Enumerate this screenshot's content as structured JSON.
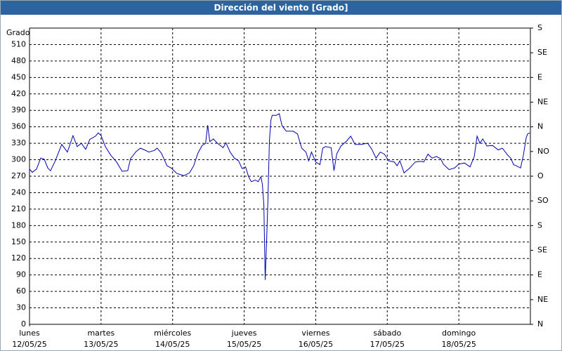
{
  "chart_data": {
    "type": "line",
    "title": "Dirección del viento [Grado]",
    "y_label": "Grado",
    "ylim": [
      0,
      540
    ],
    "yticks": [
      0,
      30,
      60,
      90,
      120,
      150,
      180,
      210,
      240,
      270,
      300,
      330,
      360,
      390,
      420,
      450,
      480,
      510
    ],
    "y2lim": [
      0,
      540
    ],
    "y2ticks": [
      {
        "value": 540,
        "label": "S"
      },
      {
        "value": 495,
        "label": "SE"
      },
      {
        "value": 450,
        "label": "E"
      },
      {
        "value": 405,
        "label": "NE"
      },
      {
        "value": 360,
        "label": "N"
      },
      {
        "value": 315,
        "label": "NO"
      },
      {
        "value": 270,
        "label": "O"
      },
      {
        "value": 225,
        "label": "SO"
      },
      {
        "value": 180,
        "label": "S"
      },
      {
        "value": 135,
        "label": "SE"
      },
      {
        "value": 90,
        "label": "E"
      },
      {
        "value": 45,
        "label": "NE"
      },
      {
        "value": 0,
        "label": "N"
      }
    ],
    "xlim": [
      0,
      7
    ],
    "xticks": [
      {
        "value": 0,
        "label": "lunes",
        "date": "12/05/25"
      },
      {
        "value": 1,
        "label": "martes",
        "date": "13/05/25"
      },
      {
        "value": 2,
        "label": "miércoles",
        "date": "14/05/25"
      },
      {
        "value": 3,
        "label": "jueves",
        "date": "15/05/25"
      },
      {
        "value": 4,
        "label": "viernes",
        "date": "16/05/25"
      },
      {
        "value": 5,
        "label": "sábado",
        "date": "17/05/25"
      },
      {
        "value": 6,
        "label": "domingo",
        "date": "18/05/25"
      }
    ],
    "grid": true,
    "x": [
      0,
      0.039,
      0.098,
      0.157,
      0.206,
      0.255,
      0.294,
      0.353,
      0.451,
      0.529,
      0.608,
      0.667,
      0.725,
      0.784,
      0.843,
      0.922,
      0.961,
      1.0,
      1.059,
      1.137,
      1.216,
      1.294,
      1.373,
      1.412,
      1.49,
      1.549,
      1.608,
      1.667,
      1.745,
      1.784,
      1.843,
      1.922,
      1.98,
      2.059,
      2.157,
      2.235,
      2.294,
      2.353,
      2.412,
      2.461,
      2.49,
      2.52,
      2.569,
      2.627,
      2.706,
      2.745,
      2.804,
      2.863,
      2.922,
      2.971,
      3.02,
      3.059,
      3.098,
      3.157,
      3.196,
      3.235,
      3.255,
      3.275,
      3.294,
      3.314,
      3.333,
      3.353,
      3.373,
      3.392,
      3.451,
      3.49,
      3.529,
      3.588,
      3.686,
      3.745,
      3.804,
      3.863,
      3.902,
      3.941,
      4.0,
      4.059,
      4.098,
      4.137,
      4.216,
      4.255,
      4.294,
      4.353,
      4.431,
      4.49,
      4.549,
      4.627,
      4.725,
      4.784,
      4.843,
      4.902,
      4.961,
      5.02,
      5.098,
      5.137,
      5.176,
      5.235,
      5.314,
      5.392,
      5.471,
      5.51,
      5.569,
      5.627,
      5.686,
      5.745,
      5.784,
      5.863,
      5.941,
      6.0,
      6.078,
      6.157,
      6.216,
      6.255,
      6.294,
      6.333,
      6.392,
      6.471,
      6.549,
      6.608,
      6.686,
      6.725,
      6.765,
      6.804,
      6.863,
      6.902,
      6.941,
      6.961,
      6.99
    ],
    "series": [
      {
        "name": "Dirección del viento",
        "color": "#0000b0",
        "values": [
          283,
          277,
          283,
          303,
          301,
          285,
          280,
          296,
          328,
          314,
          344,
          324,
          330,
          319,
          337,
          343,
          349,
          344,
          324,
          308,
          296,
          279,
          280,
          302,
          315,
          321,
          318,
          314,
          317,
          321,
          312,
          289,
          285,
          275,
          271,
          276,
          289,
          312,
          326,
          330,
          363,
          333,
          338,
          330,
          322,
          331,
          314,
          303,
          298,
          284,
          287,
          270,
          260,
          263,
          260,
          269,
          255,
          218,
          81,
          155,
          232,
          334,
          372,
          381,
          381,
          384,
          362,
          352,
          352,
          347,
          321,
          314,
          298,
          314,
          296,
          291,
          321,
          324,
          322,
          280,
          311,
          325,
          334,
          343,
          328,
          328,
          330,
          319,
          303,
          314,
          310,
          298,
          296,
          289,
          298,
          276,
          285,
          296,
          297,
          296,
          310,
          303,
          306,
          302,
          292,
          282,
          285,
          292,
          294,
          287,
          306,
          343,
          330,
          338,
          325,
          326,
          318,
          321,
          308,
          303,
          291,
          289,
          285,
          308,
          340,
          347,
          349
        ]
      }
    ]
  }
}
